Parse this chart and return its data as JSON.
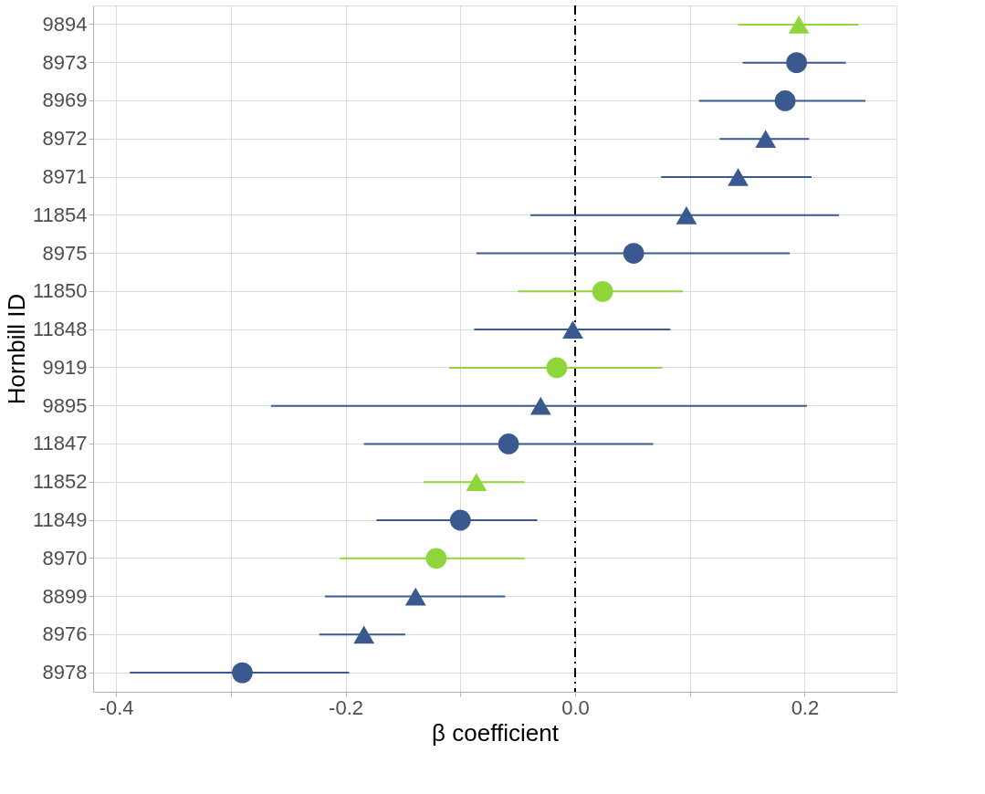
{
  "chart_data": {
    "type": "scatter",
    "orientation": "horizontal",
    "xlabel": "β coefficient",
    "ylabel": "Hornbill ID",
    "categories": [
      "9894",
      "8973",
      "8969",
      "8972",
      "8971",
      "11854",
      "8975",
      "11850",
      "11848",
      "9919",
      "9895",
      "11847",
      "11852",
      "11849",
      "8970",
      "8899",
      "8976",
      "8978"
    ],
    "series": [
      {
        "color": "#8fd63c",
        "marker": "triangle",
        "values": [
          0.195,
          null,
          null,
          null,
          null,
          null,
          null,
          null,
          null,
          null,
          null,
          null,
          -0.086,
          null,
          null,
          null,
          null,
          null
        ],
        "errors": [
          [
            0.142,
            0.247
          ],
          null,
          null,
          null,
          null,
          null,
          null,
          null,
          null,
          null,
          null,
          null,
          [
            -0.132,
            -0.044
          ],
          null,
          null,
          null,
          null,
          null
        ]
      },
      {
        "color": "#8fd63c",
        "marker": "circle",
        "values": [
          null,
          null,
          null,
          null,
          null,
          null,
          null,
          0.024,
          null,
          -0.016,
          null,
          null,
          null,
          null,
          -0.121,
          null,
          null,
          null
        ],
        "errors": [
          null,
          null,
          null,
          null,
          null,
          null,
          null,
          [
            -0.05,
            0.094
          ],
          null,
          [
            -0.11,
            0.076
          ],
          null,
          null,
          null,
          null,
          [
            -0.205,
            -0.044
          ],
          null,
          null,
          null
        ]
      },
      {
        "color": "#3a5a8f",
        "marker": "circle",
        "values": [
          null,
          0.193,
          0.183,
          null,
          null,
          null,
          0.051,
          null,
          null,
          null,
          null,
          -0.058,
          null,
          -0.1,
          null,
          null,
          null,
          -0.29
        ],
        "errors": [
          null,
          [
            0.146,
            0.236
          ],
          [
            0.108,
            0.253
          ],
          null,
          null,
          null,
          [
            -0.086,
            0.187
          ],
          null,
          null,
          null,
          null,
          [
            -0.184,
            0.068
          ],
          null,
          [
            -0.173,
            -0.033
          ],
          null,
          null,
          null,
          [
            -0.388,
            -0.197
          ]
        ]
      },
      {
        "color": "#3a5a8f",
        "marker": "triangle",
        "values": [
          null,
          null,
          null,
          0.166,
          0.142,
          0.097,
          null,
          null,
          -0.002,
          null,
          -0.03,
          null,
          null,
          null,
          null,
          -0.139,
          -0.184,
          null
        ],
        "errors": [
          null,
          null,
          null,
          [
            0.126,
            0.204
          ],
          [
            0.075,
            0.206
          ],
          [
            -0.039,
            0.23
          ],
          null,
          null,
          [
            -0.088,
            0.083
          ],
          null,
          [
            -0.265,
            0.202
          ],
          null,
          null,
          null,
          null,
          [
            -0.218,
            -0.061
          ],
          [
            -0.223,
            -0.148
          ],
          null
        ]
      }
    ],
    "xlim": [
      -0.42,
      0.28
    ],
    "xticks": [
      -0.4,
      {
        "value": -0.3,
        "label": null
      },
      -0.2,
      {
        "value": -0.1,
        "label": null
      },
      {
        "value": 0,
        "label": "0.0"
      },
      {
        "value": 0.1,
        "label": null
      },
      0.2
    ],
    "ref_lines": [
      {
        "axis": "x",
        "value": 0,
        "color": "#000000",
        "line_style": "dashed"
      }
    ],
    "grid": true
  }
}
